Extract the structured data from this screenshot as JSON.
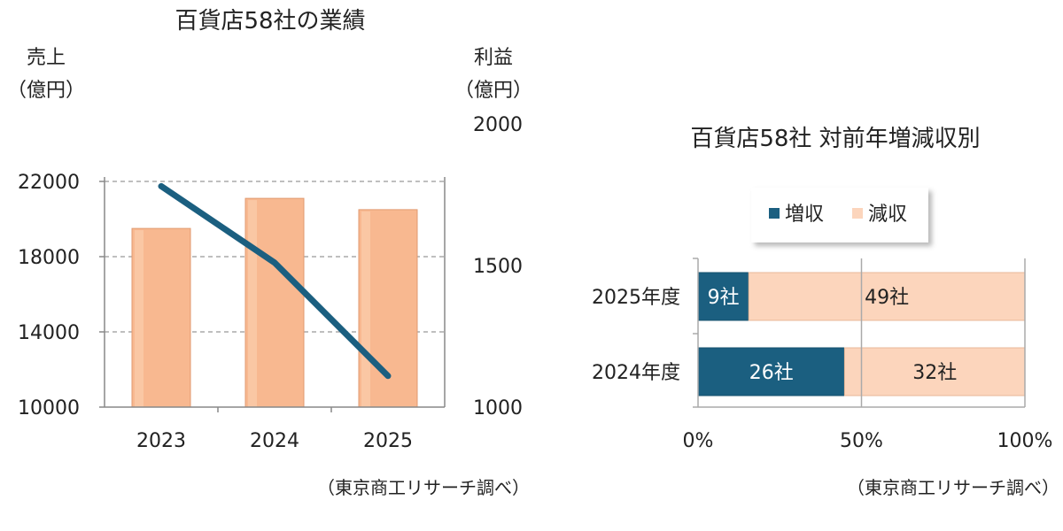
{
  "chart_data": [
    {
      "type": "bar+line",
      "title": "百貨店58社の業績",
      "y_left_label_line1": "売上",
      "y_left_label_line2": "（億円）",
      "y_right_label_line1": "利益",
      "y_right_label_line2": "（億円）",
      "categories": [
        "2023",
        "2024",
        "2025"
      ],
      "series": [
        {
          "name": "売上",
          "type": "bar",
          "axis": "left",
          "color": "#F8B890",
          "values": [
            19500,
            21100,
            20500
          ]
        },
        {
          "name": "利益",
          "type": "line",
          "axis": "right",
          "color": "#1B5F80",
          "values": [
            1780,
            1510,
            1110
          ]
        }
      ],
      "y_left_ticks": [
        "10000",
        "14000",
        "18000",
        "22000"
      ],
      "y_left_range": [
        10000,
        22000
      ],
      "y_right_ticks": [
        "1000",
        "1500",
        "2000"
      ],
      "y_right_range": [
        1000,
        2000
      ],
      "grid": "dashed horizontal",
      "source": "（東京商工リサーチ調べ）"
    },
    {
      "type": "stacked-bar-100",
      "title": "百貨店58社  対前年増減収別",
      "categories": [
        "2025年度",
        "2024年度"
      ],
      "series": [
        {
          "name": "増収",
          "color": "#1B5F80",
          "values": [
            9,
            26
          ],
          "labels": [
            "9社",
            "26社"
          ]
        },
        {
          "name": "減収",
          "color": "#FCD5BC",
          "values": [
            49,
            32
          ],
          "labels": [
            "49社",
            "32社"
          ]
        }
      ],
      "x_ticks": [
        "0%",
        "50%",
        "100%"
      ],
      "legend": "top",
      "source": "（東京商工リサーチ調べ）"
    }
  ]
}
